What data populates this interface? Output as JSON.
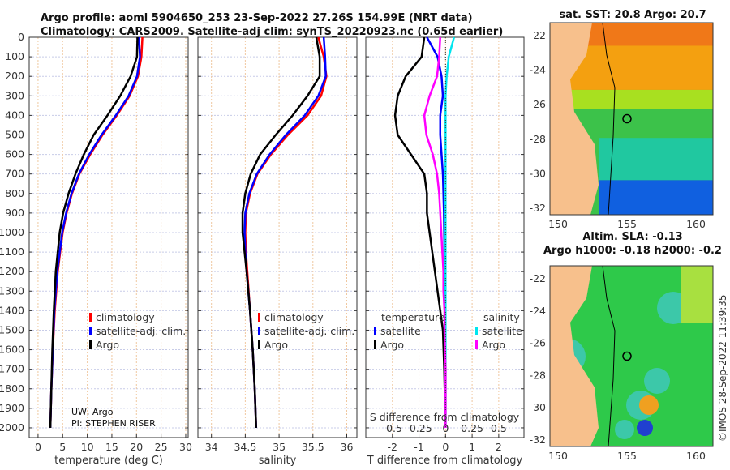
{
  "title_line1": "Argo profile: aoml 5904650_253 23-Sep-2022 27.26S 154.99E (NRT data)",
  "title_line2": "Climatology: CARS2009. Satellite-adj clim: synTS_20220923.nc (0.65d earlier)",
  "credit": "UW, Argo",
  "pi": "PI: STEPHEN RISER",
  "timestamp": "©IMOS 28-Sep-2022 11:39:35",
  "colors": {
    "clim": "#ff0000",
    "sat": "#0000ff",
    "argo": "#000000",
    "sal_sat": "#00e5ee",
    "sal_argo": "#ff00ff"
  },
  "chart_data": [
    {
      "type": "line",
      "name": "temperature",
      "xlabel": "temperature (deg C)",
      "xlim": [
        -1.8,
        30.5
      ],
      "ylim": [
        2050,
        0
      ],
      "xticks": [
        0,
        5,
        10,
        15,
        20,
        25,
        30
      ],
      "yticks": [
        0,
        100,
        200,
        300,
        400,
        500,
        600,
        700,
        800,
        900,
        1000,
        1100,
        1200,
        1300,
        1400,
        1500,
        1600,
        1700,
        1800,
        1900,
        2000
      ],
      "depth": [
        0,
        100,
        200,
        300,
        400,
        500,
        600,
        700,
        800,
        900,
        1000,
        1200,
        1400,
        1600,
        1800,
        2000
      ],
      "legend": [
        "climatology",
        "satellite-adj. clim.",
        "Argo"
      ],
      "series": [
        {
          "name": "climatology",
          "values": [
            21.2,
            21.0,
            20.3,
            18.6,
            16.0,
            13.1,
            10.6,
            8.4,
            6.9,
            5.8,
            5.0,
            4.0,
            3.4,
            3.0,
            2.7,
            2.5
          ]
        },
        {
          "name": "satellite-adj. clim.",
          "values": [
            20.5,
            20.7,
            20.1,
            18.4,
            15.8,
            12.9,
            10.4,
            8.3,
            6.8,
            5.7,
            4.9,
            3.9,
            3.3,
            3.0,
            2.7,
            2.5
          ]
        },
        {
          "name": "Argo",
          "values": [
            20.2,
            20.1,
            18.8,
            16.7,
            14.1,
            11.3,
            9.3,
            7.6,
            6.2,
            5.1,
            4.4,
            3.6,
            3.2,
            2.9,
            2.7,
            2.5
          ]
        }
      ]
    },
    {
      "type": "line",
      "name": "salinity",
      "xlabel": "salinity",
      "xlim": [
        33.8,
        36.15
      ],
      "ylim": [
        2050,
        0
      ],
      "xticks": [
        34,
        34.5,
        35,
        35.5,
        36
      ],
      "depth": [
        0,
        100,
        200,
        300,
        400,
        500,
        600,
        700,
        800,
        900,
        1000,
        1100,
        1200,
        1400,
        1600,
        1800,
        2000
      ],
      "legend": [
        "climatology",
        "satellite-adj. clim.",
        "Argo"
      ],
      "series": [
        {
          "name": "climatology",
          "values": [
            35.58,
            35.66,
            35.7,
            35.62,
            35.42,
            35.13,
            34.88,
            34.68,
            34.57,
            34.51,
            34.5,
            34.51,
            34.53,
            34.57,
            34.61,
            34.64,
            34.66
          ]
        },
        {
          "name": "satellite-adj. clim.",
          "values": [
            35.66,
            35.68,
            35.69,
            35.58,
            35.38,
            35.1,
            34.86,
            34.67,
            34.56,
            34.5,
            34.49,
            34.5,
            34.52,
            34.57,
            34.61,
            34.64,
            34.66
          ]
        },
        {
          "name": "Argo",
          "values": [
            35.55,
            35.6,
            35.6,
            35.42,
            35.2,
            34.95,
            34.72,
            34.58,
            34.5,
            34.46,
            34.46,
            34.49,
            34.52,
            34.57,
            34.61,
            34.64,
            34.66
          ]
        }
      ]
    },
    {
      "type": "line",
      "name": "difference",
      "xlabel": "T difference from climatology",
      "x2label": "S difference from climatology",
      "xlim": [
        -3,
        2.95
      ],
      "ylim": [
        2050,
        0
      ],
      "xticks": [
        -2,
        -1,
        0,
        1,
        2
      ],
      "x2ticks": [
        -0.5,
        -0.25,
        0,
        0.25,
        0.5
      ],
      "depth": [
        0,
        100,
        200,
        300,
        400,
        500,
        600,
        700,
        800,
        900,
        1000,
        1100,
        1200,
        1300,
        1400,
        1500,
        1700,
        2000
      ],
      "legend": {
        "temperature": "temperature",
        "salinity": "salinity",
        "sat": "satellite",
        "argo": "Argo"
      },
      "series": [
        {
          "name": "T satellite",
          "values": [
            -0.7,
            -0.3,
            -0.15,
            -0.1,
            -0.2,
            -0.2,
            -0.15,
            -0.1,
            -0.08,
            -0.06,
            -0.05,
            -0.04,
            -0.03,
            -0.02,
            -0.02,
            -0.01,
            0,
            0
          ]
        },
        {
          "name": "T Argo",
          "values": [
            -0.8,
            -0.9,
            -1.5,
            -1.8,
            -1.9,
            -1.8,
            -1.3,
            -0.8,
            -0.7,
            -0.7,
            -0.6,
            -0.5,
            -0.4,
            -0.3,
            -0.2,
            -0.1,
            -0.05,
            0
          ]
        },
        {
          "name": "S satellite",
          "values": [
            0.08,
            0.03,
            0.01,
            0.0,
            0.0,
            0.0,
            0.0,
            0.0,
            0.0,
            0.0,
            0.0,
            0.0,
            0.0,
            0.0,
            0.0,
            0.0,
            0.0,
            0.0
          ]
        },
        {
          "name": "S Argo",
          "values": [
            -0.05,
            -0.06,
            -0.08,
            -0.15,
            -0.2,
            -0.18,
            -0.12,
            -0.08,
            -0.06,
            -0.05,
            -0.04,
            -0.03,
            -0.02,
            -0.02,
            -0.01,
            -0.01,
            0,
            0
          ]
        }
      ]
    },
    {
      "type": "heatmap",
      "name": "sst-map",
      "title": "sat. SST: 20.8 Argo: 20.7",
      "xticks": [
        150,
        155,
        160
      ],
      "yticks": [
        -22,
        -24,
        -26,
        -28,
        -30,
        -32
      ]
    },
    {
      "type": "heatmap",
      "name": "sla-map",
      "title1": "Altim. SLA: -0.13",
      "title2": "Argo h1000: -0.18 h2000: -0.2",
      "xticks": [
        150,
        155,
        160
      ],
      "yticks": [
        -22,
        -24,
        -26,
        -28,
        -30,
        -32
      ]
    }
  ]
}
